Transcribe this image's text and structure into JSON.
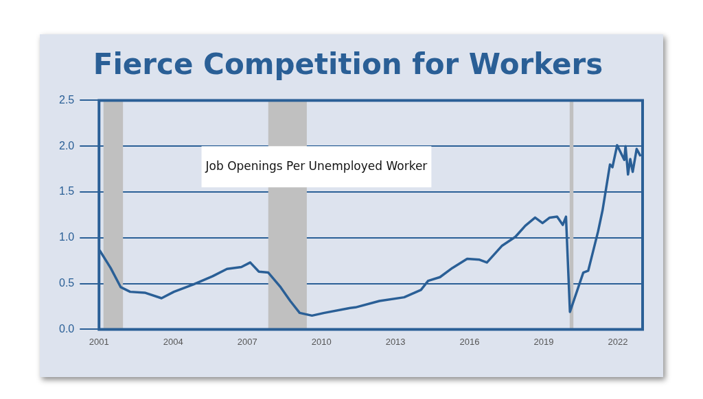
{
  "chart_data": {
    "type": "line",
    "title": "Fierce Competition for Workers",
    "annotations": [
      "Job Openings Per Unemployed Worker"
    ],
    "series": [
      {
        "color": "#2a5f96",
        "x": [
          2001.03,
          2001.47,
          2001.88,
          2002.26,
          2002.85,
          2003.53,
          2004.03,
          2004.82,
          2005.6,
          2006.18,
          2006.76,
          2007.12,
          2007.47,
          2007.85,
          2008.35,
          2008.74,
          2009.12,
          2009.62,
          2010.12,
          2011.09,
          2011.38,
          2012.35,
          2013.35,
          2014.03,
          2014.32,
          2014.8,
          2015.3,
          2015.9,
          2016.4,
          2016.7,
          2017.3,
          2017.85,
          2018.25,
          2018.65,
          2018.95,
          2019.24,
          2019.54,
          2019.77,
          2019.9,
          2020.06,
          2020.6,
          2020.8,
          2021.2,
          2021.38,
          2021.68,
          2021.78,
          2021.97,
          2022.26,
          2022.31,
          2022.41,
          2022.5,
          2022.6,
          2022.76,
          2022.9
        ],
        "values": [
          0.86,
          0.67,
          0.46,
          0.41,
          0.4,
          0.34,
          0.41,
          0.49,
          0.58,
          0.66,
          0.68,
          0.73,
          0.63,
          0.62,
          0.46,
          0.31,
          0.18,
          0.15,
          0.18,
          0.23,
          0.24,
          0.31,
          0.35,
          0.43,
          0.53,
          0.57,
          0.67,
          0.77,
          0.76,
          0.73,
          0.91,
          1.01,
          1.13,
          1.22,
          1.16,
          1.22,
          1.23,
          1.14,
          1.23,
          0.19,
          0.62,
          0.64,
          1.07,
          1.3,
          1.8,
          1.77,
          2.01,
          1.85,
          2.0,
          1.69,
          1.86,
          1.72,
          1.97,
          1.9
        ]
      }
    ],
    "xlim": [
      2001,
      2023
    ],
    "xticks": [
      2001,
      2004,
      2007,
      2010,
      2013,
      2016,
      2019,
      2022
    ],
    "ylim": [
      0,
      2.5
    ],
    "yticks": [
      {
        "value": 0,
        "label": "0.0"
      },
      {
        "value": 0.5,
        "label": "0.5"
      },
      {
        "value": 1,
        "label": "1.0"
      },
      {
        "value": 1.5,
        "label": "1.5"
      },
      {
        "value": 2,
        "label": "2.0"
      },
      {
        "value": 2.5,
        "label": "2.5"
      }
    ],
    "bands": [
      {
        "axis": "x",
        "from": 2001.18,
        "to": 2001.97,
        "color": "#c0c0c0"
      },
      {
        "axis": "x",
        "from": 2007.85,
        "to": 2009.41,
        "color": "#c0c0c0"
      },
      {
        "axis": "x",
        "from": 2020.05,
        "to": 2020.2,
        "color": "#c0c0c0"
      }
    ],
    "grid": "y",
    "legend": false,
    "marker": "none",
    "line_style": "solid"
  }
}
